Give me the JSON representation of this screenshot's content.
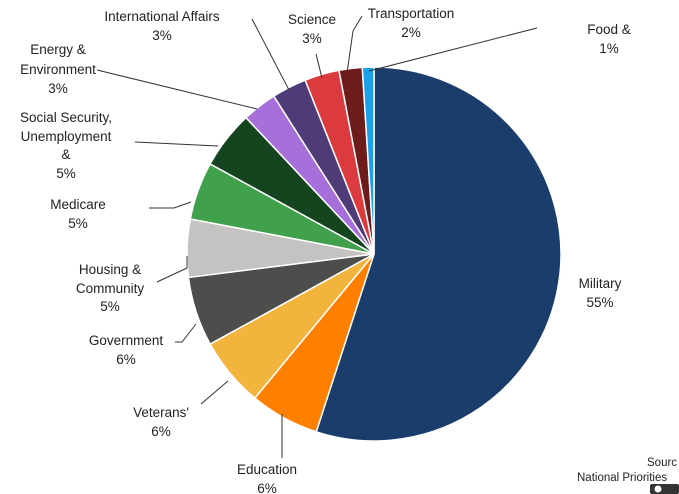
{
  "chart_data": {
    "type": "pie",
    "slices": [
      {
        "label": "Military",
        "pct_label": "55%",
        "value": 55,
        "color": "#1b3d6c"
      },
      {
        "label": "Education",
        "pct_label": "6%",
        "value": 6,
        "color": "#ff8000"
      },
      {
        "label": "Veterans' Benefits",
        "pct_label": "6%",
        "value": 6,
        "color": "#f2b43c"
      },
      {
        "label": "Government",
        "pct_label": "6%",
        "value": 6,
        "color": "#4d4d4b"
      },
      {
        "label": "Housing & Community",
        "pct_label": "5%",
        "value": 5,
        "color": "#c4c3c1"
      },
      {
        "label": "Medicare & Health",
        "pct_label": "5%",
        "value": 5,
        "color": "#40a04c"
      },
      {
        "label": "Social Security, Unemployment & Labor",
        "pct_label": "5%",
        "value": 5,
        "color": "#14451e"
      },
      {
        "label": "Energy & Environment",
        "pct_label": "3%",
        "value": 3,
        "color": "#a66fd9"
      },
      {
        "label": "International Affairs",
        "pct_label": "3%",
        "value": 3,
        "color": "#4f3b78"
      },
      {
        "label": "Science",
        "pct_label": "3%",
        "value": 3,
        "color": "#db3a3e"
      },
      {
        "label": "Transportation",
        "pct_label": "2%",
        "value": 2,
        "color": "#6e1b1b"
      },
      {
        "label": "Food & Agriculture",
        "pct_label": "1%",
        "value": 1,
        "color": "#1aa1e8"
      }
    ]
  },
  "source": {
    "line1": "Sourc",
    "line2": "National Priorities"
  }
}
